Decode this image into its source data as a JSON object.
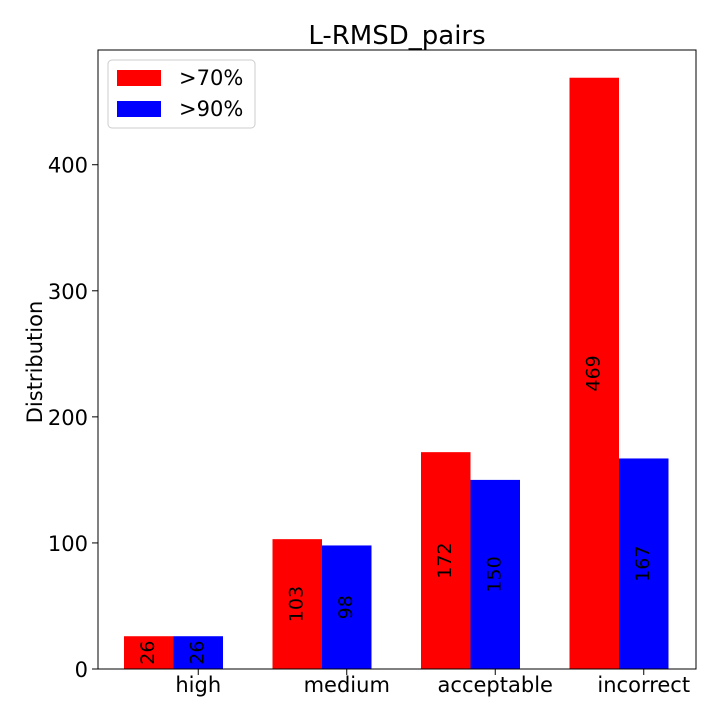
{
  "chart_data": {
    "type": "bar",
    "title": "L-RMSD_pairs",
    "xlabel": "",
    "ylabel": "Distribution",
    "categories": [
      "high",
      "medium",
      "acceptable",
      "incorrect"
    ],
    "series": [
      {
        "name": ">70%",
        "values": [
          26,
          103,
          172,
          469
        ],
        "color": "#ff0000"
      },
      {
        "name": ">90%",
        "values": [
          26,
          98,
          150,
          167
        ],
        "color": "#0000ff"
      }
    ],
    "ylim": [
      0,
      491
    ],
    "yticks": [
      0,
      100,
      200,
      300,
      400
    ],
    "grid": false,
    "legend_position": "top-left",
    "data_labels": "rotated-vertical-center"
  }
}
